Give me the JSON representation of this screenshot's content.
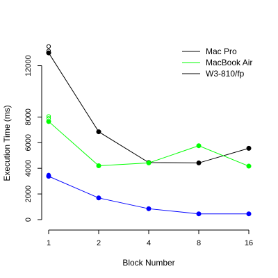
{
  "chart_data": {
    "type": "line",
    "title": "",
    "xlabel": "Block Number",
    "ylabel": "Execution Time (ms)",
    "x_tick_labels": [
      "1",
      "2",
      "4",
      "8",
      "16"
    ],
    "x": [
      1,
      2,
      4,
      8,
      16
    ],
    "x_scale": "log2",
    "y_ticks": [
      0,
      2000,
      4000,
      6000,
      8000,
      12000
    ],
    "y_tick_labels": [
      "0",
      "2000",
      "4000",
      "6000",
      "8000",
      "12000"
    ],
    "ylim": [
      0,
      13600
    ],
    "grid": false,
    "legend_position": "top-right",
    "series": [
      {
        "name": "Mac Pro",
        "color": "#000000",
        "line_color": "#000000",
        "values": [
          13000,
          6850,
          4450,
          4420,
          5560
        ],
        "extra_points": [
          {
            "x": 1,
            "y": 13150,
            "filled": false
          },
          {
            "x": 1,
            "y": 13500,
            "filled": false
          }
        ]
      },
      {
        "name": "MacBook Air",
        "color": "#00ff00",
        "line_color": "#00ff00",
        "values": [
          7650,
          4200,
          4420,
          5760,
          4170
        ],
        "extra_points": [
          {
            "x": 1,
            "y": 7900,
            "filled": false
          },
          {
            "x": 1,
            "y": 8050,
            "filled": false
          }
        ]
      },
      {
        "name": "W3-810/fp",
        "color": "#0000ff",
        "line_color": "#000000",
        "values": [
          3380,
          1690,
          850,
          450,
          450
        ],
        "extra_points": [
          {
            "x": 1,
            "y": 3480,
            "filled": true
          }
        ]
      }
    ]
  }
}
